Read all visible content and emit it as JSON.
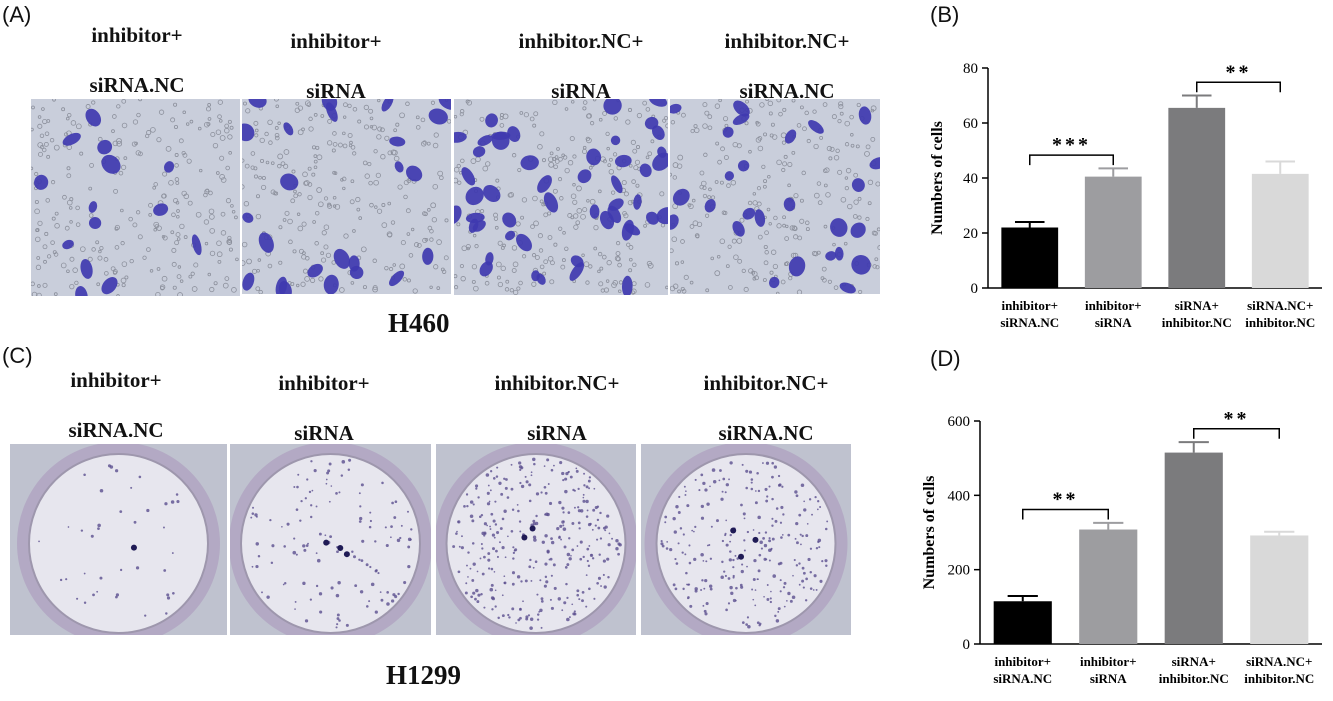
{
  "panels": {
    "A": "(A)",
    "B": "(B)",
    "C": "(C)",
    "D": "(D)"
  },
  "top_row": {
    "cell_line": "H460",
    "columns": [
      {
        "line1": "inhibitor+",
        "line2": "siRNA.NC"
      },
      {
        "line1": "inhibitor+",
        "line2": "siRNA"
      },
      {
        "line1": "inhibitor.NC+",
        "line2": "siRNA"
      },
      {
        "line1": "inhibitor.NC+",
        "line2": "siRNA.NC"
      }
    ]
  },
  "bottom_row": {
    "cell_line": "H1299",
    "columns": [
      {
        "line1": "inhibitor+",
        "line2": "siRNA.NC"
      },
      {
        "line1": "inhibitor+",
        "line2": "siRNA"
      },
      {
        "line1": "inhibitor.NC+",
        "line2": "siRNA"
      },
      {
        "line1": "inhibitor.NC+",
        "line2": "siRNA.NC"
      }
    ]
  },
  "chart_data": [
    {
      "panel": "B",
      "type": "bar",
      "ylabel": "Numbers of cells",
      "xlabel": "",
      "ylim": [
        0,
        80
      ],
      "yticks": [
        0,
        20,
        40,
        60,
        80
      ],
      "categories": [
        [
          "inhibitor+",
          "siRNA.NC"
        ],
        [
          "inhibitor+",
          "siRNA"
        ],
        [
          "siRNA+",
          "inhibitor.NC"
        ],
        [
          "siRNA.NC+",
          "inhibitor.NC"
        ]
      ],
      "values": [
        22,
        40.5,
        65.5,
        41.5
      ],
      "errors": [
        2,
        3,
        4.5,
        4.5
      ],
      "colors": [
        "#000000",
        "#9d9da0",
        "#7b7b7d",
        "#d9d9d9"
      ],
      "significance": [
        {
          "from": 0,
          "to": 1,
          "label": "***"
        },
        {
          "from": 2,
          "to": 3,
          "label": "**"
        }
      ]
    },
    {
      "panel": "D",
      "type": "bar",
      "ylabel": "Numbers of cells",
      "xlabel": "",
      "ylim": [
        0,
        600
      ],
      "yticks": [
        0,
        200,
        400,
        600
      ],
      "categories": [
        [
          "inhibitor+",
          "siRNA.NC"
        ],
        [
          "inhibitor+",
          "siRNA"
        ],
        [
          "siRNA+",
          "inhibitor.NC"
        ],
        [
          "siRNA.NC+",
          "inhibitor.NC"
        ]
      ],
      "values": [
        115,
        308,
        515,
        292
      ],
      "errors": [
        14,
        18,
        28,
        10
      ],
      "colors": [
        "#000000",
        "#9d9da0",
        "#7b7b7d",
        "#d9d9d9"
      ],
      "significance": [
        {
          "from": 0,
          "to": 1,
          "label": "**"
        },
        {
          "from": 2,
          "to": 3,
          "label": "**"
        }
      ]
    }
  ]
}
